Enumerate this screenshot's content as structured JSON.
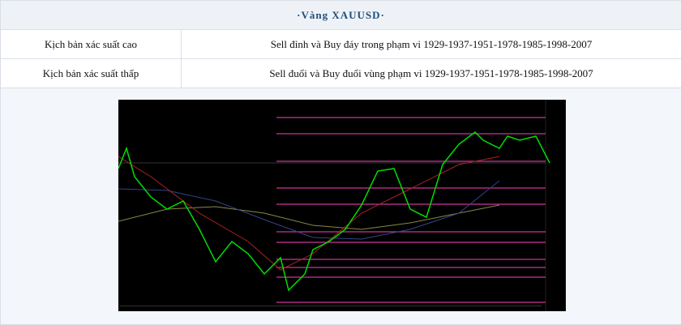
{
  "header": {
    "title": "·Vàng XAUUSD·"
  },
  "table": {
    "rows": [
      [
        "Kịch bản xác suất cao",
        "Sell đỉnh và Buy đáy trong phạm vi 1929-1937-1951-1978-1985-1998-2007"
      ],
      [
        "Kịch bản xác suất thấp",
        "Sell đuổi và Buy đuổi vùng phạm vi 1929-1937-1951-1978-1985-1998-2007"
      ]
    ]
  }
}
